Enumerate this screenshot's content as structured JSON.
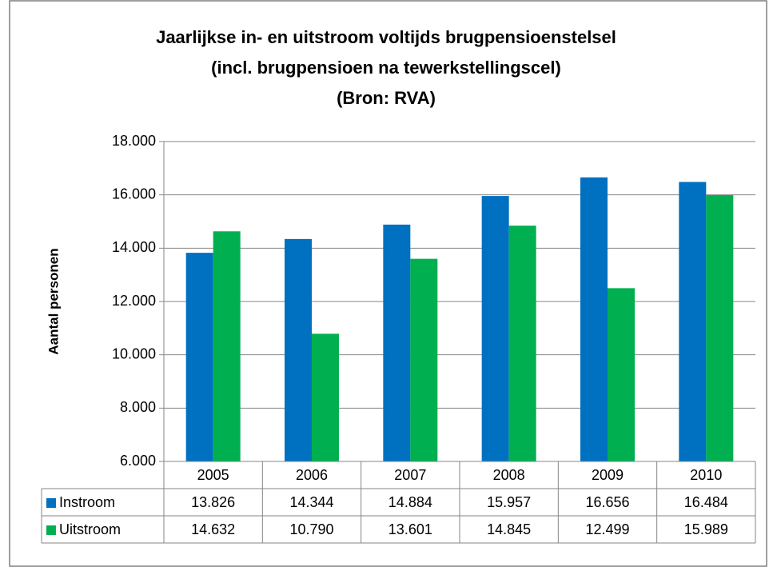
{
  "chart_data": {
    "type": "bar",
    "title": [
      "Jaarlijkse in- en uitstroom voltijds brugpensioenstelsel",
      "(incl. brugpensioen na tewerkstellingscel)",
      "(Bron: RVA)"
    ],
    "y_label": "Aantal personen",
    "categories": [
      "2005",
      "2006",
      "2007",
      "2008",
      "2009",
      "2010"
    ],
    "series": [
      {
        "name": "Instroom",
        "color": "#0070c0",
        "values": [
          13826,
          14344,
          14884,
          15957,
          16656,
          16484
        ],
        "value_labels": [
          "13.826",
          "14.344",
          "14.884",
          "15.957",
          "16.656",
          "16.484"
        ]
      },
      {
        "name": "Uitstroom",
        "color": "#00b050",
        "values": [
          14632,
          10790,
          13601,
          14845,
          12499,
          15989
        ],
        "value_labels": [
          "14.632",
          "10.790",
          "13.601",
          "14.845",
          "12.499",
          "15.989"
        ]
      }
    ],
    "ylim": [
      6000,
      18000
    ],
    "yticks": [
      {
        "value": 6000,
        "label": "6.000"
      },
      {
        "value": 8000,
        "label": "8.000"
      },
      {
        "value": 10000,
        "label": "10.000"
      },
      {
        "value": 12000,
        "label": "12.000"
      },
      {
        "value": 14000,
        "label": "14.000"
      },
      {
        "value": 16000,
        "label": "16.000"
      },
      {
        "value": 18000,
        "label": "18.000"
      }
    ],
    "grid": true
  }
}
